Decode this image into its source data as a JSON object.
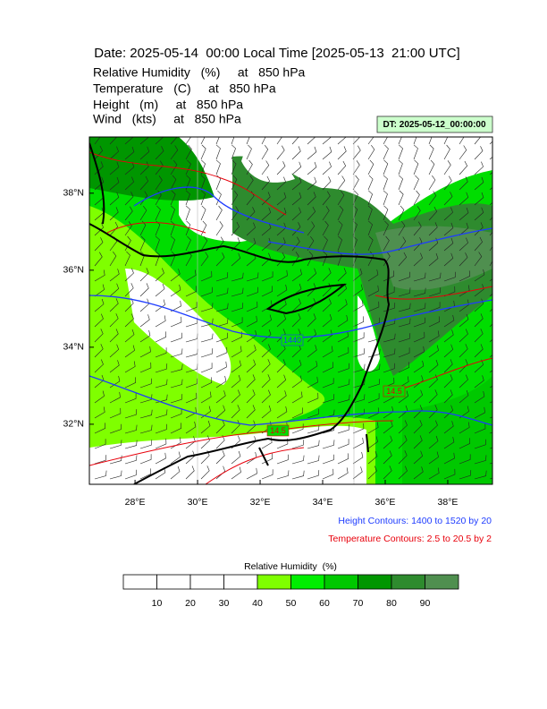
{
  "header": {
    "title": "Date: 2025-05-14  00:00 Local Time [2025-05-13  21:00 UTC]",
    "lines": [
      "Relative Humidity   (%)     at   850 hPa",
      "Temperature   (C)     at   850 hPa",
      "Height   (m)     at   850 hPa",
      "Wind   (kts)     at   850 hPa"
    ],
    "dt_label": "DT: 2025-05-12_00:00:00"
  },
  "map": {
    "xlim": [
      26.54,
      39.43
    ],
    "ylim": [
      30.44,
      39.46
    ],
    "xticks": [
      {
        "value": 28,
        "label": "28°E"
      },
      {
        "value": 30,
        "label": "30°E"
      },
      {
        "value": 32,
        "label": "32°E"
      },
      {
        "value": 34,
        "label": "34°E"
      },
      {
        "value": 36,
        "label": "36°E"
      },
      {
        "value": 38,
        "label": "38°E"
      }
    ],
    "yticks": [
      {
        "value": 32,
        "label": "32°N"
      },
      {
        "value": 34,
        "label": "34°N"
      },
      {
        "value": 36,
        "label": "36°N"
      },
      {
        "value": 38,
        "label": "38°N"
      }
    ],
    "contour_labels": [
      {
        "text": "1440",
        "color": "#1e3cff"
      },
      {
        "text": "14.5",
        "color": "#e8000b"
      },
      {
        "text": "14.5",
        "color": "#e8000b"
      }
    ]
  },
  "legend": {
    "height_contours": "Height Contours: 1400 to 1520 by 20",
    "temperature_contours": "Temperature Contours: 2.5 to 20.5 by 2"
  },
  "colorbar": {
    "title": "Relative Humidity  (%)",
    "colors": [
      "#ffffff",
      "#ffffff",
      "#ffffff",
      "#ffffff",
      "#7fff00",
      "#00ee00",
      "#00c800",
      "#009600",
      "#2e8b2e",
      "#4f8f4f"
    ],
    "ticks": [
      10,
      20,
      30,
      40,
      50,
      60,
      70,
      80,
      90
    ]
  }
}
